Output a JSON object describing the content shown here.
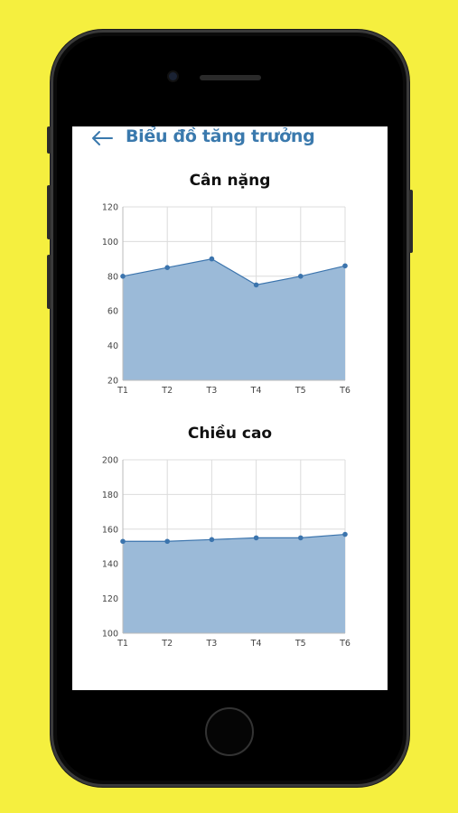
{
  "header": {
    "title": "Biểu đồ tăng trưởng"
  },
  "chart_data": [
    {
      "type": "area",
      "title": "Cân nặng",
      "categories": [
        "T1",
        "T2",
        "T3",
        "T4",
        "T5",
        "T6"
      ],
      "values": [
        80,
        85,
        90,
        75,
        80,
        86
      ],
      "ylim": [
        20,
        120
      ],
      "yticks": [
        20,
        40,
        60,
        80,
        100,
        120
      ],
      "grid": true,
      "color": "#3b74ad",
      "fill": "#9bbad8"
    },
    {
      "type": "area",
      "title": "Chiều cao",
      "categories": [
        "T1",
        "T2",
        "T3",
        "T4",
        "T5",
        "T6"
      ],
      "values": [
        153,
        153,
        154,
        155,
        155,
        157
      ],
      "ylim": [
        100,
        200
      ],
      "yticks": [
        100,
        120,
        140,
        160,
        180,
        200
      ],
      "grid": true,
      "color": "#3b74ad",
      "fill": "#9bbad8"
    }
  ]
}
